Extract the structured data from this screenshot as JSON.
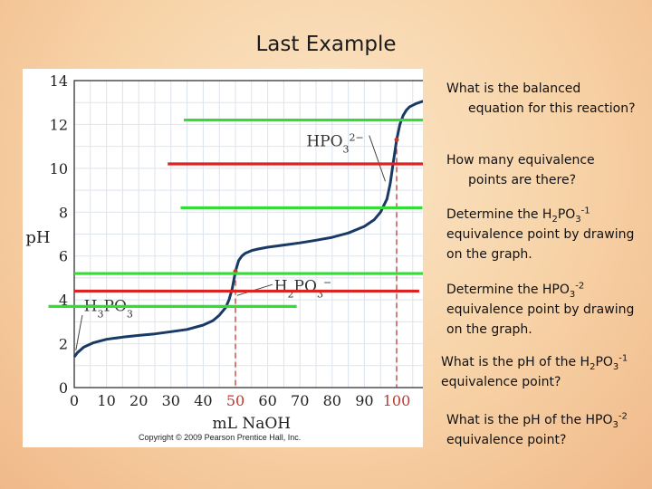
{
  "slide": {
    "title": "Last Example"
  },
  "questions": [
    {
      "line1": "What is the balanced",
      "rest": "equation for this reaction?"
    },
    {
      "line1": "How many equivalence",
      "rest": "points are there?"
    },
    {
      "pre": "Determine the H",
      "s1": "2",
      "mid": "PO",
      "s2": "3",
      "sup": "-1",
      "post": "equivalence point by drawing on the graph."
    },
    {
      "pre": "Determine the HPO",
      "s1": "3",
      "sup": "-2",
      "post": "equivalence point by drawing on the graph."
    },
    {
      "pre": "What is the pH of the H",
      "s1": "2",
      "mid": "PO",
      "s2": "3",
      "sup": "-1",
      "post": "equivalence point?"
    },
    {
      "pre": "What is the pH of the HPO",
      "s1": "3",
      "sup": "-2",
      "post": "equivalence point?"
    }
  ],
  "chart_data": {
    "type": "line",
    "xlabel": "mL NaOH",
    "ylabel": "pH",
    "xlim": [
      0,
      110
    ],
    "ylim": [
      0,
      14
    ],
    "x_ticks": [
      "0",
      "10",
      "20",
      "30",
      "40",
      "50",
      "60",
      "70",
      "80",
      "90",
      "100"
    ],
    "y_ticks": [
      "0",
      "2",
      "4",
      "6",
      "8",
      "10",
      "12",
      "14"
    ],
    "highlight_x_ticks": [
      "50",
      "100"
    ],
    "curve": {
      "x": [
        0,
        1,
        3,
        6,
        10,
        15,
        20,
        25,
        30,
        35,
        40,
        43,
        45,
        47,
        48,
        49,
        50,
        51,
        52,
        53,
        55,
        57,
        60,
        65,
        70,
        75,
        80,
        85,
        90,
        93,
        95,
        97,
        98,
        99,
        100,
        101,
        102,
        103,
        104,
        106,
        108,
        110
      ],
      "y": [
        1.4,
        1.6,
        1.85,
        2.05,
        2.2,
        2.3,
        2.38,
        2.45,
        2.55,
        2.65,
        2.85,
        3.05,
        3.3,
        3.65,
        4.0,
        4.5,
        5.3,
        5.8,
        6.0,
        6.12,
        6.25,
        6.32,
        6.4,
        6.5,
        6.6,
        6.72,
        6.85,
        7.05,
        7.35,
        7.65,
        8.0,
        8.6,
        9.3,
        10.3,
        11.3,
        12.0,
        12.4,
        12.65,
        12.8,
        12.95,
        13.05,
        13.1
      ]
    },
    "equivalence_points": [
      {
        "x": 50,
        "ph": 5.3
      },
      {
        "x": 100,
        "ph": 11.3
      }
    ],
    "species_labels": [
      {
        "base": "H",
        "s1": "3",
        "mid": "PO",
        "s2": "3",
        "sup": "",
        "x": 3,
        "ph": 3.5
      },
      {
        "base": "H",
        "s1": "2",
        "mid": "PO",
        "s2": "3",
        "sup": "−",
        "x": 62,
        "ph": 4.4
      },
      {
        "base": "HPO",
        "s1": "3",
        "mid": "",
        "s2": "",
        "sup": "2−",
        "x": 72,
        "ph": 11.0
      }
    ],
    "overlay_lines": [
      {
        "color": "green",
        "ph": 12.2,
        "x_from": 34,
        "x_to": 111
      },
      {
        "color": "red",
        "ph": 10.2,
        "x_from": 29,
        "x_to": 109
      },
      {
        "color": "green",
        "ph": 8.2,
        "x_from": 33,
        "x_to": 108
      },
      {
        "color": "green",
        "ph": 5.2,
        "x_from": 0,
        "x_to": 113
      },
      {
        "color": "red",
        "ph": 4.4,
        "x_from": 0,
        "x_to": 107
      },
      {
        "color": "green",
        "ph": 3.7,
        "x_from": -8,
        "x_to": 69
      }
    ],
    "colors": {
      "curve": "#1a3a66",
      "green": "#33dd33",
      "red": "#dd2222",
      "highlight": "#c0392b",
      "grid": "#dde4ee"
    },
    "copyright": "Copyright © 2009 Pearson Prentice Hall, Inc."
  }
}
